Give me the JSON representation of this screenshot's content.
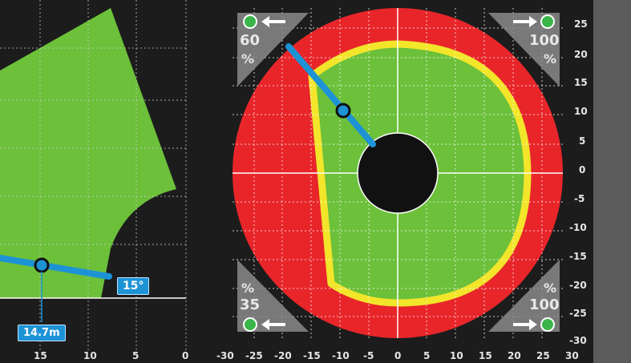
{
  "left_panel": {
    "angle_label": "15°",
    "radius_label": "14.7m",
    "x_ticks": [
      "15",
      "10",
      "5",
      "0"
    ]
  },
  "right_panel": {
    "corner_top_left": {
      "value": "60",
      "unit": "%"
    },
    "corner_top_right": {
      "value": "100",
      "unit": "%"
    },
    "corner_bottom_left": {
      "value": "35",
      "unit": "%"
    },
    "corner_bottom_right": {
      "value": "100",
      "unit": "%"
    },
    "y_ticks": [
      "25",
      "20",
      "15",
      "10",
      "5",
      "0",
      "-5",
      "-10",
      "-15",
      "-20",
      "-25",
      "-30"
    ],
    "x_ticks": [
      "-30",
      "-25",
      "-20",
      "-15",
      "-10",
      "-5",
      "0",
      "5",
      "10",
      "15",
      "20",
      "25",
      "30"
    ]
  },
  "colors": {
    "background": "#1c1c1c",
    "safe_zone": "#6cc03a",
    "danger_zone": "#e8262a",
    "boundary": "#f2e52a",
    "boom": "#1d93d6",
    "indicator": "#39b54a"
  },
  "icons": [
    "arrow-left-icon",
    "arrow-right-icon",
    "status-dot-icon"
  ]
}
